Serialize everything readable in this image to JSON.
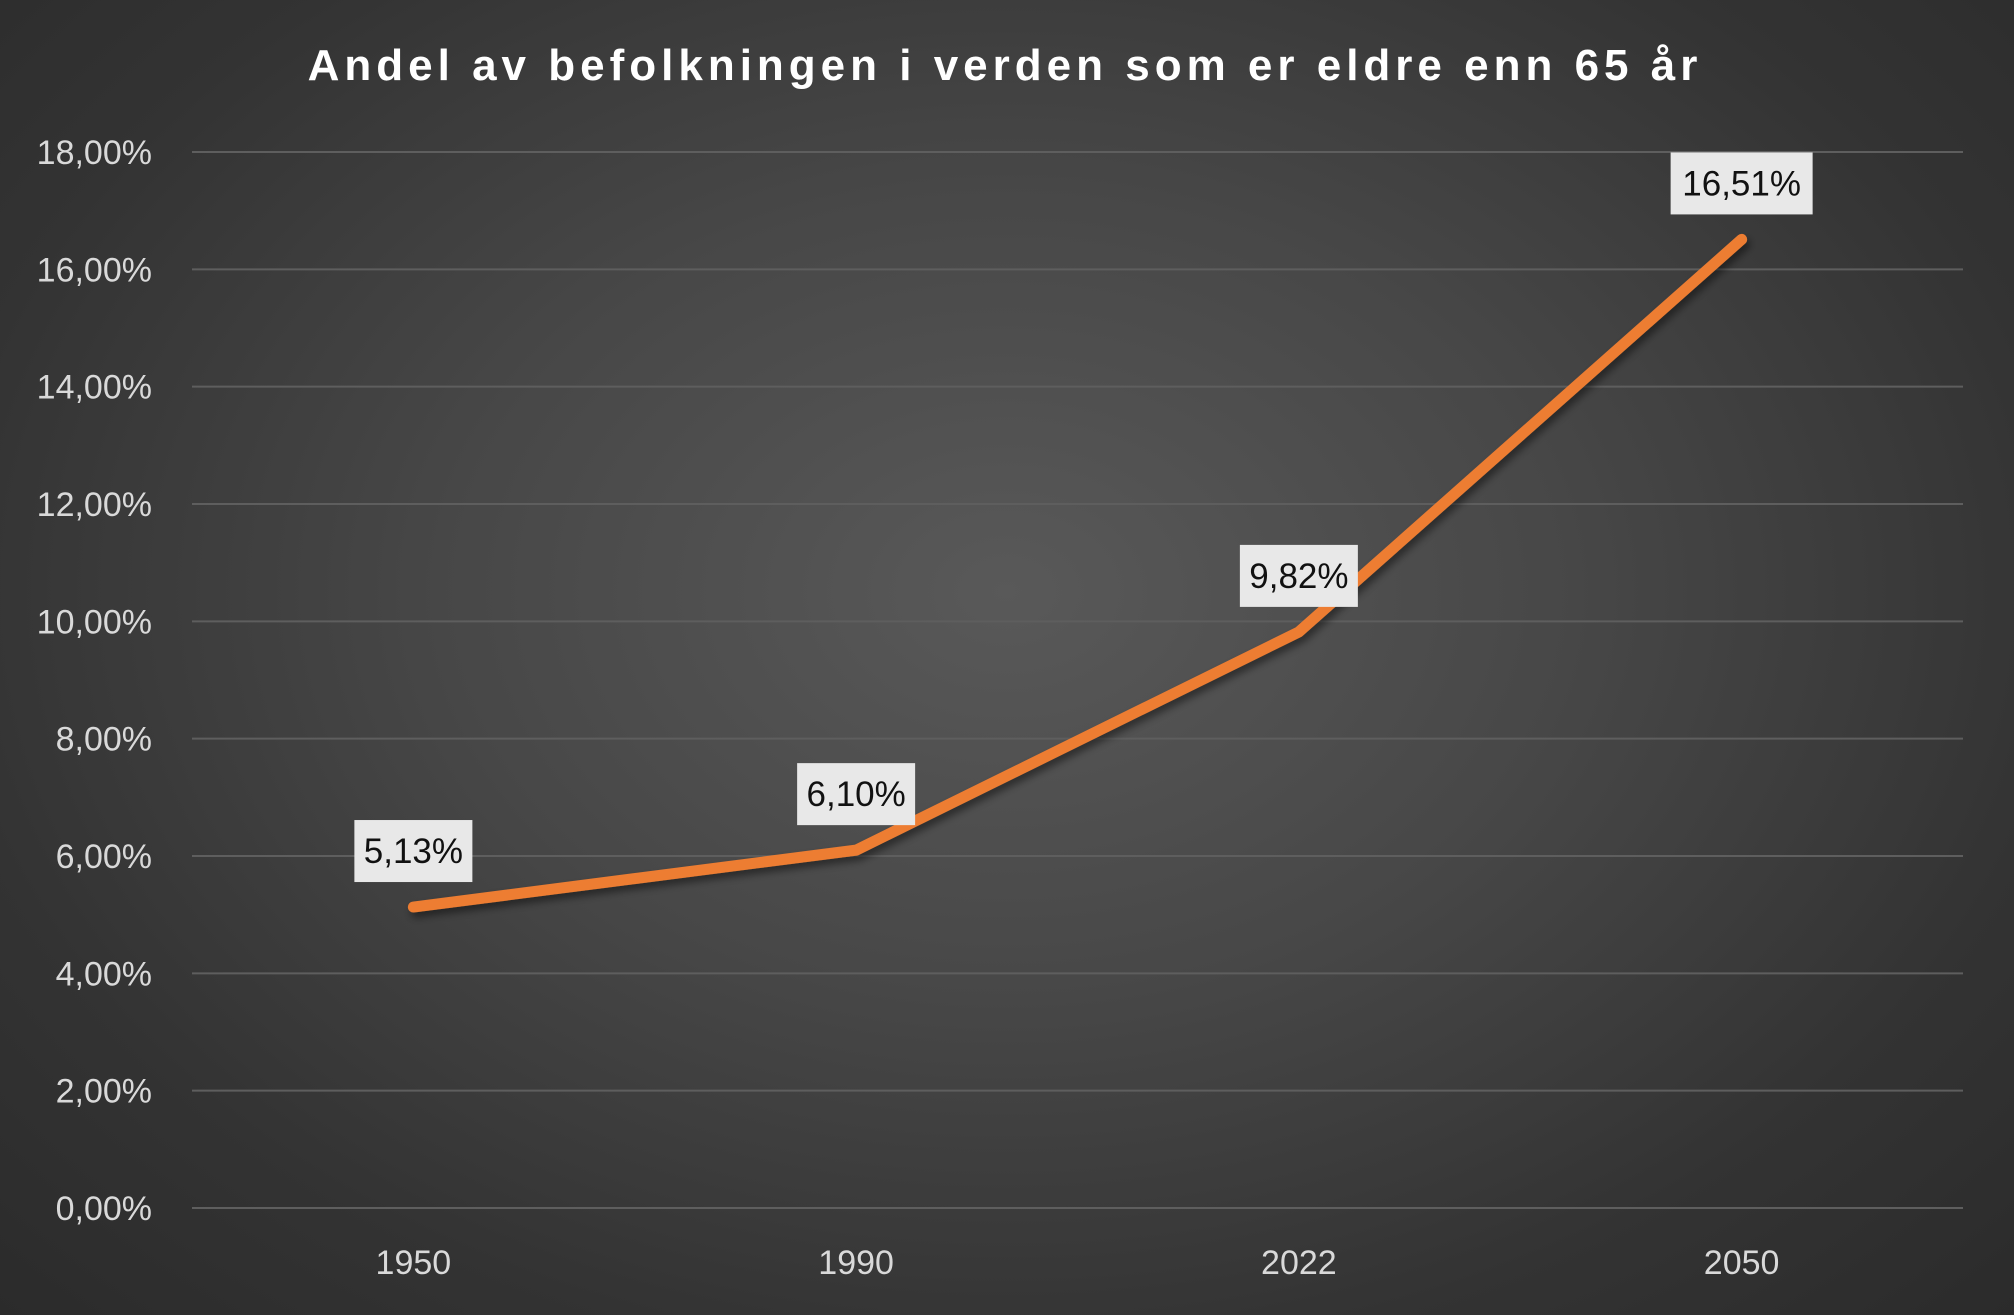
{
  "chart_data": {
    "type": "line",
    "title": "Andel av befolkningen i verden som er eldre enn 65 år",
    "xlabel": "",
    "ylabel": "",
    "categories": [
      "1950",
      "1990",
      "2022",
      "2050"
    ],
    "series": [
      {
        "values": [
          5.13,
          6.1,
          9.82,
          16.51
        ],
        "data_labels": [
          "5,13%",
          "6,10%",
          "9,82%",
          "16,51%"
        ]
      }
    ],
    "ylim": [
      0,
      18
    ],
    "y_ticks": [
      0,
      2,
      4,
      6,
      8,
      10,
      12,
      14,
      16,
      18
    ],
    "y_tick_labels": [
      "0,00%",
      "2,00%",
      "4,00%",
      "6,00%",
      "8,00%",
      "10,00%",
      "12,00%",
      "14,00%",
      "16,00%",
      "18,00%"
    ],
    "grid": "horizontal",
    "legend": "none",
    "colors": {
      "line": "#ed7d31",
      "gridline": "#5e5e5e",
      "label_box": "#e8e8e8",
      "text": "#d9d9d9"
    }
  }
}
